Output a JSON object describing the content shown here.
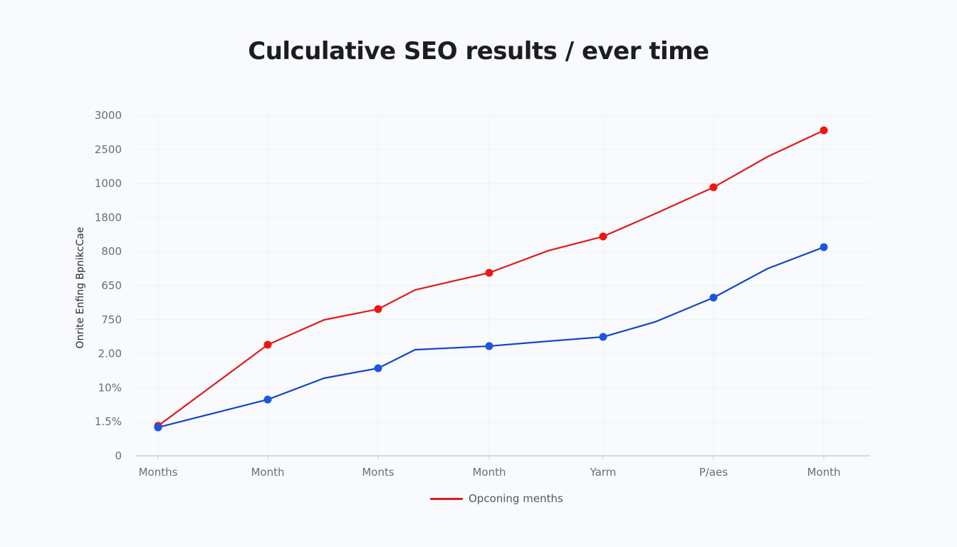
{
  "title": "Culculative SEO results / ever time",
  "colors": {
    "background": "#f8fafd",
    "series_red": "#e01b1b",
    "series_blue": "#1146c8",
    "marker_blue": "#1a56e0",
    "grid": "#eef0f4",
    "axis": "#c9ccd2",
    "tick_text": "#6a6d73"
  },
  "y_axis": {
    "label": "Onrite Enfing BpnikcCae",
    "ticks": [
      "3000",
      "2500",
      "1000",
      "1800",
      "800",
      "650",
      "750",
      "2.00",
      "10%",
      "1.5%",
      "0"
    ]
  },
  "x_axis": {
    "ticks": [
      "Months",
      "Month",
      "Monts",
      "Month",
      "Yarm",
      "P/aes",
      "Month"
    ]
  },
  "legend": {
    "items": [
      {
        "label": "Opconing menths",
        "color": "#e01b1b"
      }
    ]
  },
  "chart_data": {
    "type": "line",
    "title": "Culculative SEO results / ever time",
    "xlabel": "",
    "ylabel": "Onrite Enfing BpnikcCae",
    "categories": [
      "Months",
      "Month",
      "Monts",
      "Month",
      "Yarm",
      "P/aes",
      "Month"
    ],
    "y_tick_labels_top_to_bottom": [
      "3000",
      "2500",
      "1000",
      "1800",
      "800",
      "650",
      "750",
      "2.00",
      "10%",
      "1.5%",
      "0"
    ],
    "ylim": [
      0,
      3000
    ],
    "grid": true,
    "legend_position": "bottom-center",
    "series": [
      {
        "name": "Opconing menths",
        "color": "#e01b1b",
        "values": [
          264,
          979,
          1293,
          1613,
          1933,
          2366,
          2868
        ],
        "intermediate_vertices": [
          {
            "between": [
              1,
              2
            ],
            "value": 1198
          },
          {
            "between": [
              2,
              3
            ],
            "value": 1462
          },
          {
            "between": [
              3,
              4
            ],
            "value": 1808
          },
          {
            "between": [
              4,
              5
            ],
            "value": 2133
          },
          {
            "between": [
              5,
              6
            ],
            "value": 2636
          }
        ]
      },
      {
        "name": "(unlabeled blue series)",
        "color": "#1146c8",
        "values": [
          251,
          496,
          772,
          967,
          1048,
          1394,
          1839
        ],
        "intermediate_vertices": [
          {
            "between": [
              1,
              2
            ],
            "value": 684
          },
          {
            "between": [
              2,
              3
            ],
            "value": 935
          },
          {
            "between": [
              3,
              4
            ],
            "value": 1010
          },
          {
            "between": [
              4,
              5
            ],
            "value": 1180
          },
          {
            "between": [
              5,
              6
            ],
            "value": 1650
          }
        ]
      }
    ]
  }
}
